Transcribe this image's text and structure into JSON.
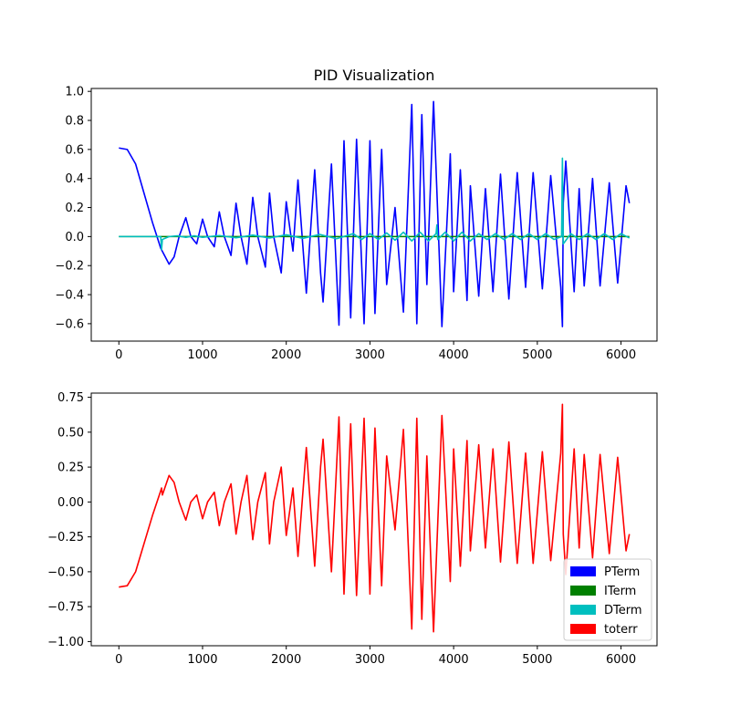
{
  "chart_data": [
    {
      "type": "line",
      "title": "PID Visualization",
      "xlabel": "",
      "ylabel": "",
      "xlim": [
        -330,
        6430
      ],
      "ylim": [
        -0.72,
        1.02
      ],
      "xticks": [
        0,
        1000,
        2000,
        3000,
        4000,
        5000,
        6000
      ],
      "yticks": [
        -0.6,
        -0.4,
        -0.2,
        0.0,
        0.2,
        0.4,
        0.6,
        0.8,
        1.0
      ],
      "xtick_labels": [
        "0",
        "1000",
        "2000",
        "3000",
        "4000",
        "5000",
        "6000"
      ],
      "ytick_labels": [
        "−0.6",
        "−0.4",
        "−0.2",
        "0.0",
        "0.2",
        "0.4",
        "0.6",
        "0.8",
        "1.0"
      ],
      "grid": false,
      "series": [
        {
          "name": "PTerm",
          "color": "#0000ff",
          "x": [
            0,
            100,
            200,
            300,
            400,
            500,
            600,
            660,
            720,
            800,
            860,
            930,
            1000,
            1060,
            1140,
            1200,
            1260,
            1340,
            1400,
            1460,
            1530,
            1600,
            1660,
            1750,
            1800,
            1850,
            1940,
            2000,
            2080,
            2140,
            2240,
            2340,
            2410,
            2440,
            2540,
            2630,
            2690,
            2770,
            2840,
            2930,
            3000,
            3060,
            3140,
            3200,
            3300,
            3400,
            3500,
            3560,
            3620,
            3680,
            3760,
            3860,
            3960,
            4000,
            4080,
            4160,
            4200,
            4300,
            4380,
            4470,
            4560,
            4660,
            4760,
            4860,
            4950,
            5060,
            5160,
            5280,
            5300,
            5310,
            5340,
            5440,
            5500,
            5560,
            5660,
            5750,
            5860,
            5960,
            6060,
            6100
          ],
          "y": [
            0.61,
            0.6,
            0.5,
            0.3,
            0.1,
            -0.08,
            -0.19,
            -0.14,
            0.0,
            0.13,
            0.0,
            -0.05,
            0.12,
            0.0,
            -0.07,
            0.17,
            0.0,
            -0.13,
            0.23,
            0.0,
            -0.19,
            0.27,
            0.0,
            -0.21,
            0.3,
            0.0,
            -0.25,
            0.24,
            -0.1,
            0.39,
            -0.39,
            0.46,
            -0.25,
            -0.45,
            0.5,
            -0.61,
            0.66,
            -0.56,
            0.67,
            -0.6,
            0.66,
            -0.53,
            0.6,
            -0.33,
            0.2,
            -0.52,
            0.91,
            -0.6,
            0.84,
            -0.33,
            0.93,
            -0.62,
            0.57,
            -0.38,
            0.46,
            -0.44,
            0.35,
            -0.41,
            0.33,
            -0.38,
            0.43,
            -0.43,
            0.44,
            -0.35,
            0.44,
            -0.36,
            0.42,
            -0.35,
            -0.62,
            0.23,
            0.52,
            -0.38,
            0.33,
            -0.34,
            0.4,
            -0.34,
            0.37,
            -0.32,
            0.35,
            0.23
          ]
        },
        {
          "name": "ITerm",
          "color": "#008000",
          "x": [
            0,
            6100
          ],
          "y": [
            0.0,
            0.0
          ]
        },
        {
          "name": "DTerm",
          "color": "#00bfbf",
          "x": [
            0,
            400,
            500,
            510,
            520,
            600,
            700,
            800,
            900,
            1000,
            1200,
            1400,
            1600,
            1800,
            2000,
            2200,
            2400,
            2600,
            2800,
            2900,
            3000,
            3100,
            3200,
            3300,
            3400,
            3500,
            3600,
            3700,
            3790,
            3800,
            3810,
            3900,
            4000,
            4100,
            4200,
            4300,
            4400,
            4500,
            4600,
            4700,
            4800,
            4900,
            5000,
            5100,
            5200,
            5290,
            5300,
            5310,
            5400,
            5500,
            5600,
            5700,
            5800,
            5900,
            6000,
            6100
          ],
          "y": [
            0.0,
            0.0,
            0.0,
            -0.09,
            -0.02,
            0.0,
            0.005,
            -0.005,
            0.005,
            -0.005,
            0.007,
            -0.008,
            0.01,
            -0.01,
            0.012,
            -0.012,
            0.015,
            -0.015,
            0.02,
            -0.02,
            0.02,
            -0.02,
            0.025,
            -0.025,
            0.03,
            -0.03,
            0.03,
            -0.03,
            0.02,
            0.08,
            -0.02,
            0.03,
            -0.03,
            0.03,
            -0.03,
            0.02,
            -0.02,
            0.02,
            -0.02,
            0.02,
            -0.02,
            0.02,
            -0.02,
            0.02,
            -0.02,
            0.0,
            0.54,
            -0.05,
            0.02,
            -0.02,
            0.02,
            -0.02,
            0.02,
            -0.02,
            0.02,
            -0.01
          ]
        }
      ]
    },
    {
      "type": "line",
      "title": "",
      "xlabel": "",
      "ylabel": "",
      "xlim": [
        -330,
        6430
      ],
      "ylim": [
        -1.03,
        0.78
      ],
      "xticks": [
        0,
        1000,
        2000,
        3000,
        4000,
        5000,
        6000
      ],
      "yticks": [
        -1.0,
        -0.75,
        -0.5,
        -0.25,
        0.0,
        0.25,
        0.5,
        0.75
      ],
      "xtick_labels": [
        "0",
        "1000",
        "2000",
        "3000",
        "4000",
        "5000",
        "6000"
      ],
      "ytick_labels": [
        "−1.00",
        "−0.75",
        "−0.50",
        "−0.25",
        "0.00",
        "0.25",
        "0.50",
        "0.75"
      ],
      "grid": false,
      "legend": {
        "position": "lower right",
        "entries": [
          {
            "label": "PTerm",
            "color": "#0000ff"
          },
          {
            "label": "ITerm",
            "color": "#008000"
          },
          {
            "label": "DTerm",
            "color": "#00bfbf"
          },
          {
            "label": "toterr",
            "color": "#ff0000"
          }
        ]
      },
      "series": [
        {
          "name": "toterr",
          "color": "#ff0000",
          "x": [
            0,
            100,
            200,
            300,
            400,
            500,
            510,
            520,
            600,
            660,
            720,
            800,
            860,
            930,
            1000,
            1060,
            1140,
            1200,
            1260,
            1340,
            1400,
            1460,
            1530,
            1600,
            1660,
            1750,
            1800,
            1850,
            1940,
            2000,
            2080,
            2140,
            2240,
            2340,
            2410,
            2440,
            2540,
            2630,
            2690,
            2770,
            2840,
            2930,
            3000,
            3060,
            3140,
            3200,
            3300,
            3400,
            3500,
            3560,
            3620,
            3680,
            3760,
            3860,
            3960,
            4000,
            4080,
            4160,
            4200,
            4300,
            4380,
            4470,
            4560,
            4660,
            4760,
            4860,
            4950,
            5060,
            5160,
            5280,
            5300,
            5310,
            5340,
            5440,
            5500,
            5560,
            5660,
            5750,
            5860,
            5960,
            6060,
            6100
          ],
          "y": [
            -0.61,
            -0.6,
            -0.5,
            -0.3,
            -0.1,
            0.08,
            0.1,
            0.05,
            0.19,
            0.14,
            0.0,
            -0.13,
            0.0,
            0.05,
            -0.12,
            0.0,
            0.07,
            -0.17,
            0.0,
            0.13,
            -0.23,
            0.0,
            0.19,
            -0.27,
            0.0,
            0.21,
            -0.3,
            0.0,
            0.25,
            -0.24,
            0.1,
            -0.39,
            0.39,
            -0.46,
            0.25,
            0.45,
            -0.5,
            0.61,
            -0.66,
            0.56,
            -0.67,
            0.6,
            -0.66,
            0.53,
            -0.6,
            0.33,
            -0.2,
            0.52,
            -0.91,
            0.6,
            -0.84,
            0.33,
            -0.93,
            0.62,
            -0.57,
            0.38,
            -0.46,
            0.44,
            -0.35,
            0.41,
            -0.33,
            0.38,
            -0.43,
            0.43,
            -0.44,
            0.35,
            -0.44,
            0.36,
            -0.42,
            0.35,
            0.7,
            -0.23,
            -0.52,
            0.38,
            -0.33,
            0.34,
            -0.4,
            0.34,
            -0.37,
            0.32,
            -0.35,
            -0.23
          ]
        }
      ]
    }
  ]
}
